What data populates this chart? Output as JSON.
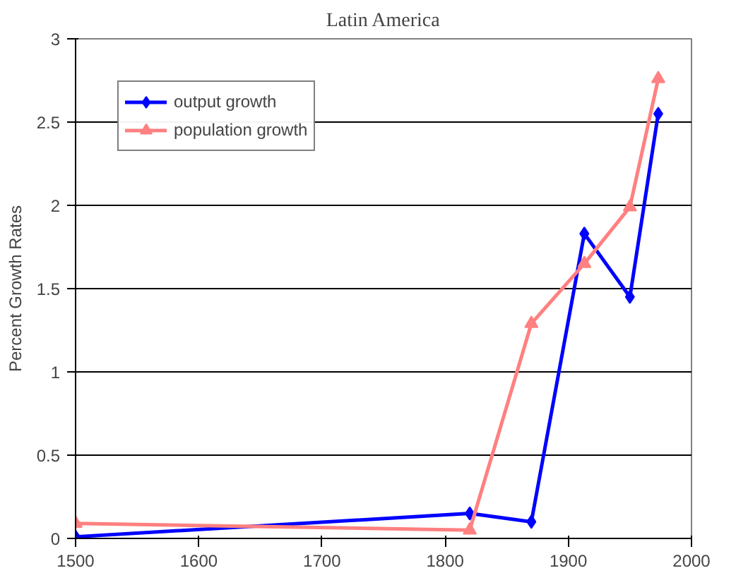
{
  "chart_data": {
    "type": "line",
    "title": "Latin America",
    "ylabel": "Percent Growth Rates",
    "x": [
      1500,
      1820,
      1870,
      1913,
      1950,
      1973
    ],
    "series": [
      {
        "name": "output growth",
        "color": "#0000ff",
        "marker": "diamond",
        "values": [
          0.01,
          0.15,
          0.1,
          1.83,
          1.45,
          2.55
        ]
      },
      {
        "name": "population growth",
        "color": "#ff8080",
        "marker": "triangle",
        "values": [
          0.09,
          0.05,
          1.29,
          1.65,
          1.99,
          2.76
        ]
      }
    ],
    "xlim": [
      1500,
      2000
    ],
    "xticks": [
      1500,
      1600,
      1700,
      1800,
      1900,
      2000
    ],
    "ylim": [
      0,
      3
    ],
    "yticks": [
      0,
      0.5,
      1,
      1.5,
      2,
      2.5,
      3
    ],
    "grid": "y",
    "legend": "top left"
  }
}
